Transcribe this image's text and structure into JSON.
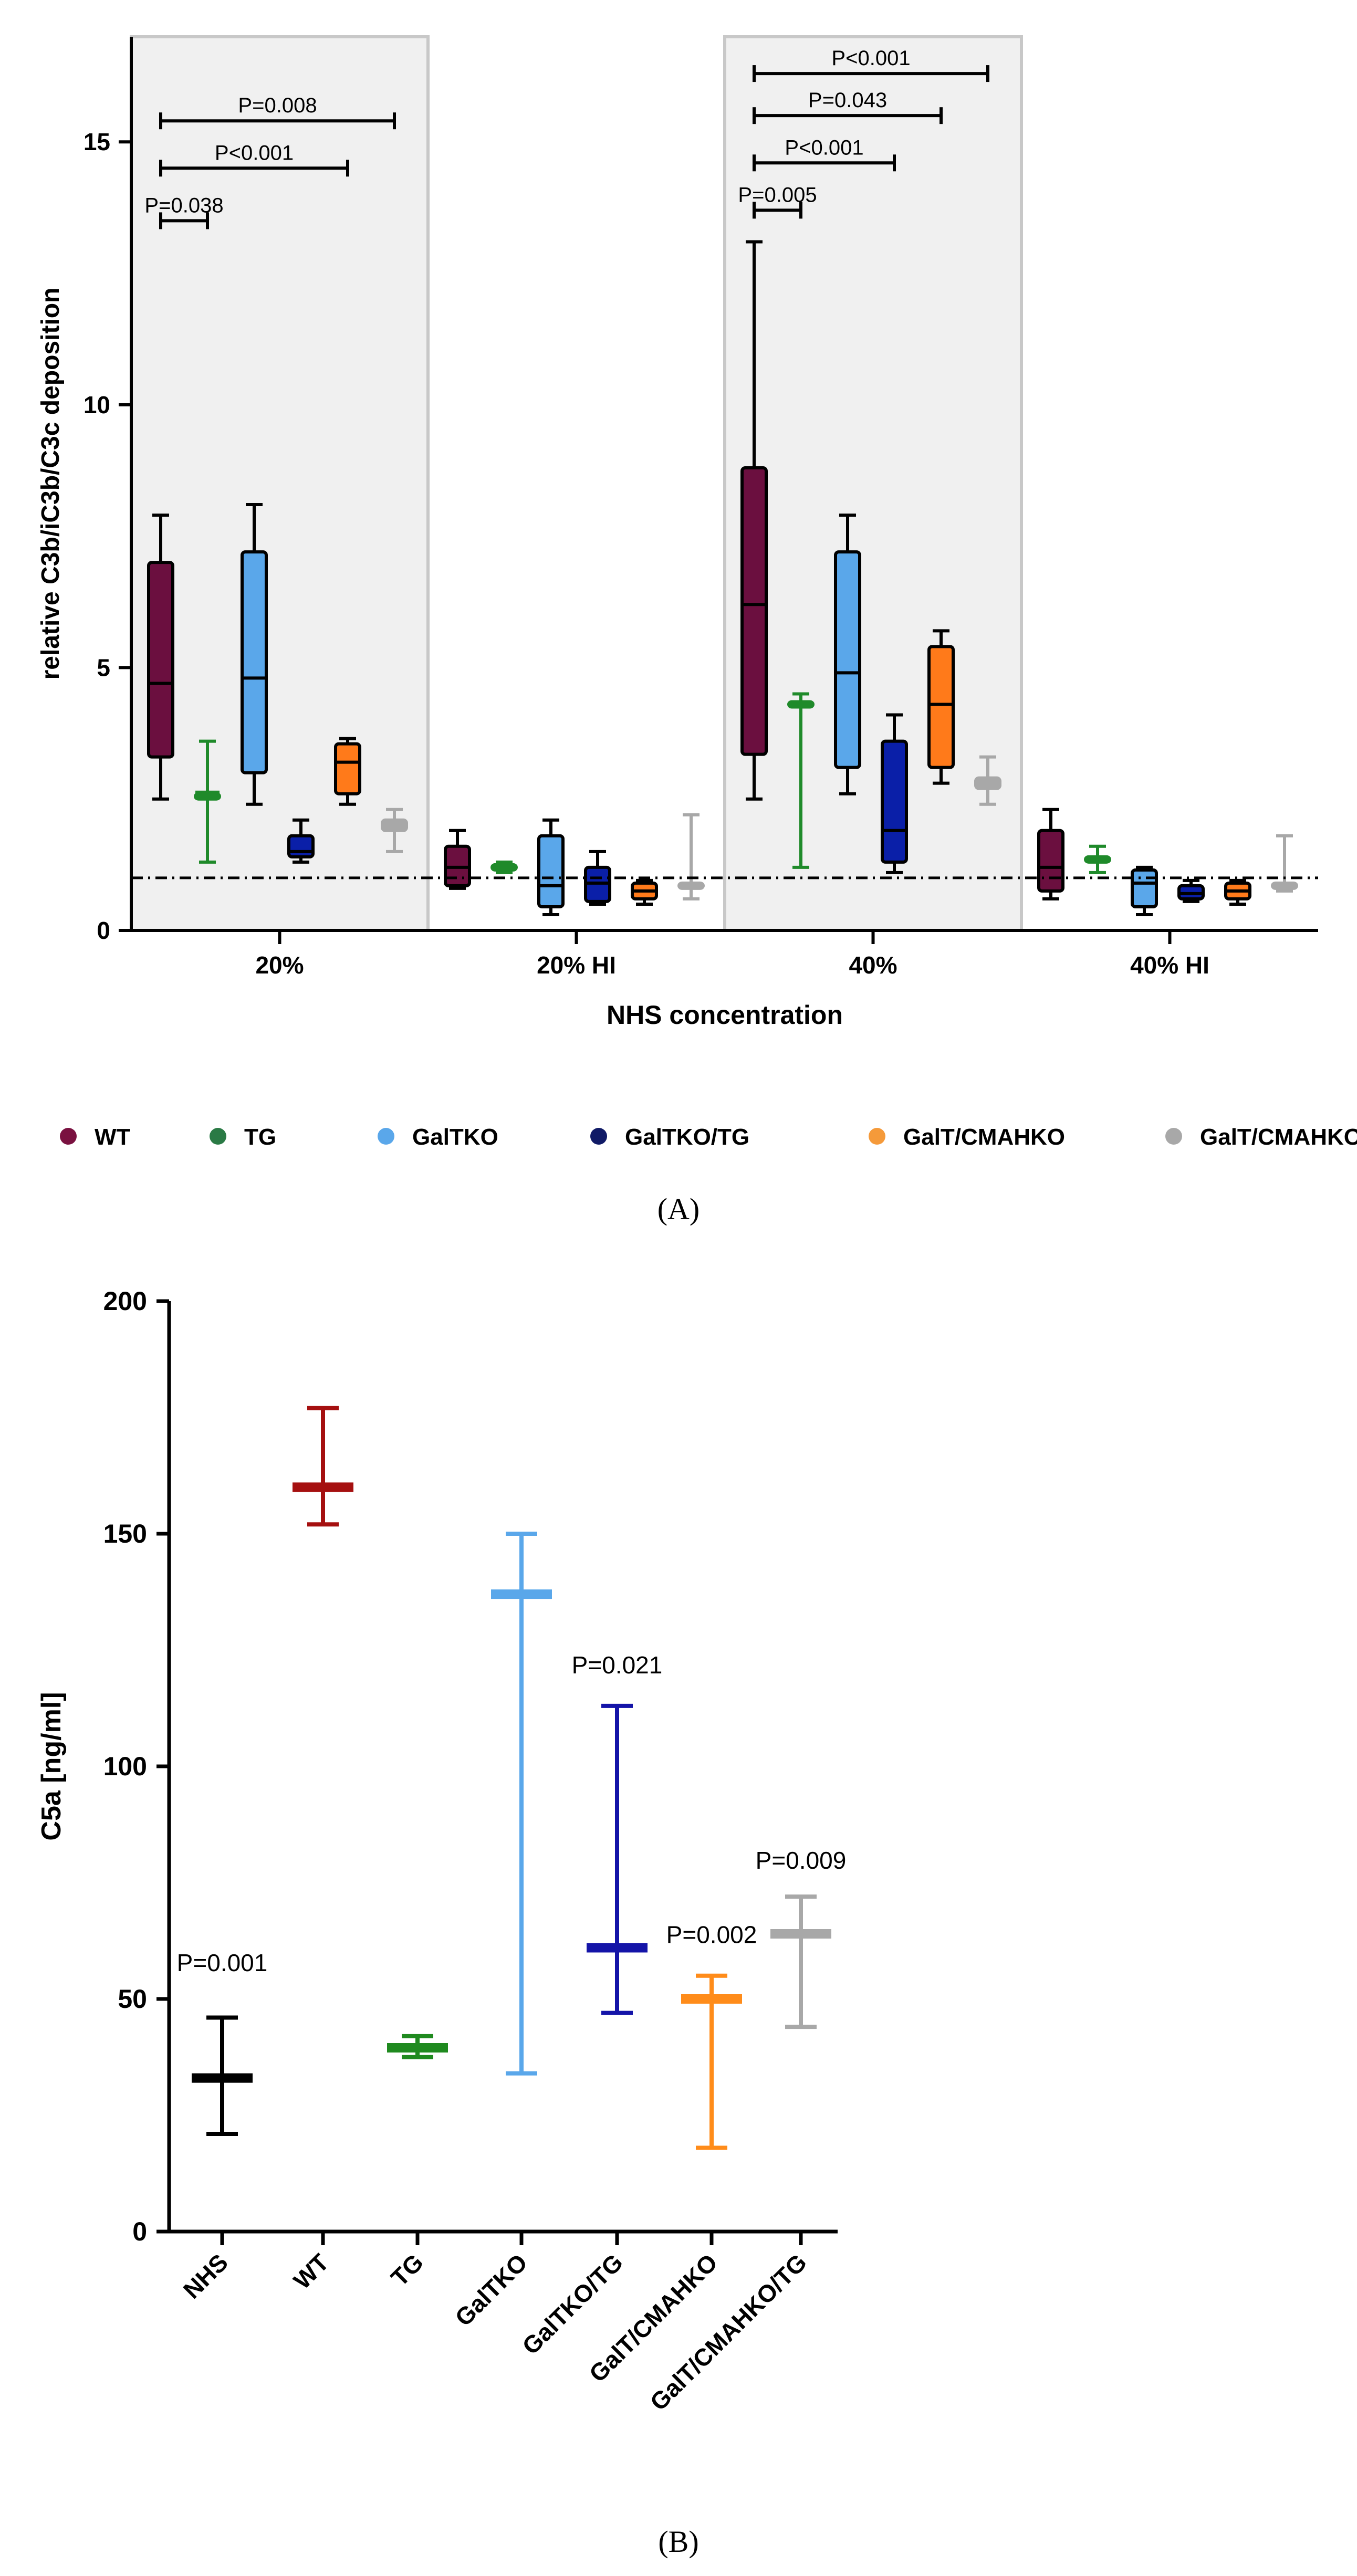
{
  "figure": {
    "panels": [
      "(A)",
      "(B)"
    ]
  },
  "colors": {
    "WT": "#6b0f3f",
    "TG": "#1f8a2a",
    "GalTKO": "#5aa7ea",
    "GalTKO/TG": "#0a1fa8",
    "GalT/CMAHKO": "#ff7a1a",
    "GalT/CMAHKO/TG": "#a8a8a8",
    "legend_WT": "#7a1140",
    "legend_TG": "#2a7a45",
    "legend_GalTKO": "#5aa7ea",
    "legend_GalTKO/TG": "#101a66",
    "legend_GalT/CMAHKO": "#f59a3a",
    "legend_GalT/CMAHKO/TG": "#a8a8a8",
    "B_NHS": "#000000",
    "B_WT": "#a51010",
    "B_TG": "#1f8a1f",
    "B_GalTKO": "#5aa7ea",
    "B_GalTKO/TG": "#1414a8",
    "B_GalT/CMAHKO": "#ff8c1a",
    "B_GalT/CMAHKO/TG": "#a8a8a8",
    "shade": "#f0f0f0",
    "shade_border": "#c8c8c8"
  },
  "chart_data": [
    {
      "type": "box",
      "panel": "(A)",
      "ylabel": "relative C3b/iC3b/C3c deposition",
      "xlabel": "NHS concentration",
      "ylim": [
        0,
        17
      ],
      "yticks": [
        0,
        5,
        10,
        15
      ],
      "reference_line": 1,
      "groups": [
        "20%",
        "20% HI",
        "40%",
        "40% HI"
      ],
      "shaded_groups": [
        "20%",
        "40%"
      ],
      "legend": [
        "WT",
        "TG",
        "GalTKO",
        "GalTKO/TG",
        "GalT/CMAHKO",
        "GalT/CMAHKO/TG"
      ],
      "series": [
        {
          "name": "WT",
          "boxes": [
            {
              "min": 2.5,
              "q1": 3.3,
              "median": 4.7,
              "q3": 7.0,
              "max": 7.9
            },
            {
              "min": 0.8,
              "q1": 0.85,
              "median": 1.2,
              "q3": 1.6,
              "max": 1.9
            },
            {
              "min": 2.5,
              "q1": 3.35,
              "median": 6.2,
              "q3": 8.8,
              "max": 13.1
            },
            {
              "min": 0.6,
              "q1": 0.75,
              "median": 1.2,
              "q3": 1.9,
              "max": 2.3
            }
          ]
        },
        {
          "name": "TG",
          "boxes": [
            {
              "min": 1.3,
              "q1": 2.5,
              "median": 2.6,
              "q3": 2.6,
              "max": 3.6
            },
            {
              "min": 1.1,
              "q1": 1.15,
              "median": 1.2,
              "q3": 1.25,
              "max": 1.3
            },
            {
              "min": 1.2,
              "q1": 4.25,
              "median": 4.3,
              "q3": 4.35,
              "max": 4.5
            },
            {
              "min": 1.1,
              "q1": 1.3,
              "median": 1.35,
              "q3": 1.4,
              "max": 1.6
            }
          ]
        },
        {
          "name": "GalTKO",
          "boxes": [
            {
              "min": 2.4,
              "q1": 3.0,
              "median": 4.8,
              "q3": 7.2,
              "max": 8.1
            },
            {
              "min": 0.3,
              "q1": 0.45,
              "median": 0.85,
              "q3": 1.8,
              "max": 2.1
            },
            {
              "min": 2.6,
              "q1": 3.1,
              "median": 4.9,
              "q3": 7.2,
              "max": 7.9
            },
            {
              "min": 0.3,
              "q1": 0.45,
              "median": 0.9,
              "q3": 1.15,
              "max": 1.2
            }
          ]
        },
        {
          "name": "GalTKO/TG",
          "boxes": [
            {
              "min": 1.3,
              "q1": 1.4,
              "median": 1.5,
              "q3": 1.8,
              "max": 2.1
            },
            {
              "min": 0.5,
              "q1": 0.55,
              "median": 0.9,
              "q3": 1.2,
              "max": 1.5
            },
            {
              "min": 1.1,
              "q1": 1.3,
              "median": 1.9,
              "q3": 3.6,
              "max": 4.1
            },
            {
              "min": 0.55,
              "q1": 0.6,
              "median": 0.7,
              "q3": 0.85,
              "max": 0.95
            }
          ]
        },
        {
          "name": "GalT/CMAHKO",
          "boxes": [
            {
              "min": 2.4,
              "q1": 2.6,
              "median": 3.2,
              "q3": 3.55,
              "max": 3.65
            },
            {
              "min": 0.5,
              "q1": 0.6,
              "median": 0.75,
              "q3": 0.9,
              "max": 0.95
            },
            {
              "min": 2.8,
              "q1": 3.1,
              "median": 4.3,
              "q3": 5.4,
              "max": 5.7
            },
            {
              "min": 0.5,
              "q1": 0.6,
              "median": 0.75,
              "q3": 0.9,
              "max": 0.95
            }
          ]
        },
        {
          "name": "GalT/CMAHKO/TG",
          "boxes": [
            {
              "min": 1.5,
              "q1": 1.9,
              "median": 2.0,
              "q3": 2.1,
              "max": 2.3
            },
            {
              "min": 0.6,
              "q1": 0.8,
              "median": 0.85,
              "q3": 0.9,
              "max": 2.2
            },
            {
              "min": 2.4,
              "q1": 2.7,
              "median": 2.8,
              "q3": 2.9,
              "max": 3.3
            },
            {
              "min": 0.75,
              "q1": 0.8,
              "median": 0.85,
              "q3": 0.9,
              "max": 1.8
            }
          ]
        }
      ],
      "annotations": [
        {
          "text": "P=0.008",
          "group": "20%",
          "from": "WT",
          "to": "GalT/CMAHKO/TG",
          "y": 15.4
        },
        {
          "text": "P<0.001",
          "group": "20%",
          "from": "WT",
          "to": "GalT/CMAHKO",
          "y": 14.5
        },
        {
          "text": "P=0.038",
          "group": "20%",
          "from": "WT",
          "to": "TG",
          "y": 13.5
        },
        {
          "text": "P<0.001",
          "group": "40%",
          "from": "WT",
          "to": "GalT/CMAHKO/TG",
          "y": 16.3
        },
        {
          "text": "P=0.043",
          "group": "40%",
          "from": "WT",
          "to": "GalT/CMAHKO",
          "y": 15.5
        },
        {
          "text": "P<0.001",
          "group": "40%",
          "from": "WT",
          "to": "GalTKO/TG",
          "y": 14.6
        },
        {
          "text": "P=0.005",
          "group": "40%",
          "from": "WT",
          "to": "TG",
          "y": 13.7
        }
      ]
    },
    {
      "type": "range",
      "panel": "(B)",
      "ylabel": "C5a [ng/ml]",
      "ylim": [
        0,
        200
      ],
      "yticks": [
        0,
        50,
        100,
        150,
        200
      ],
      "categories": [
        "NHS",
        "WT",
        "TG",
        "GalTKO",
        "GalTKO/TG",
        "GalT/CMAHKO",
        "GalT/CMAHKO/TG"
      ],
      "series": [
        {
          "values": [
            {
              "min": 21,
              "median": 33,
              "max": 46
            },
            {
              "min": 152,
              "median": 160,
              "max": 177
            },
            {
              "min": 37.5,
              "median": 39.5,
              "max": 42
            },
            {
              "min": 34,
              "median": 137,
              "max": 150
            },
            {
              "min": 47,
              "median": 61,
              "max": 113
            },
            {
              "min": 18,
              "median": 50,
              "max": 55
            },
            {
              "min": 44,
              "median": 64,
              "max": 72
            }
          ]
        }
      ],
      "annotations": [
        {
          "text": "P=0.001",
          "category": "NHS",
          "y": 56
        },
        {
          "text": "P=0.021",
          "category": "GalTKO/TG",
          "y": 120
        },
        {
          "text": "P=0.002",
          "category": "GalT/CMAHKO",
          "y": 62
        },
        {
          "text": "P=0.009",
          "category": "GalT/CMAHKO/TG",
          "y": 78
        }
      ]
    }
  ]
}
